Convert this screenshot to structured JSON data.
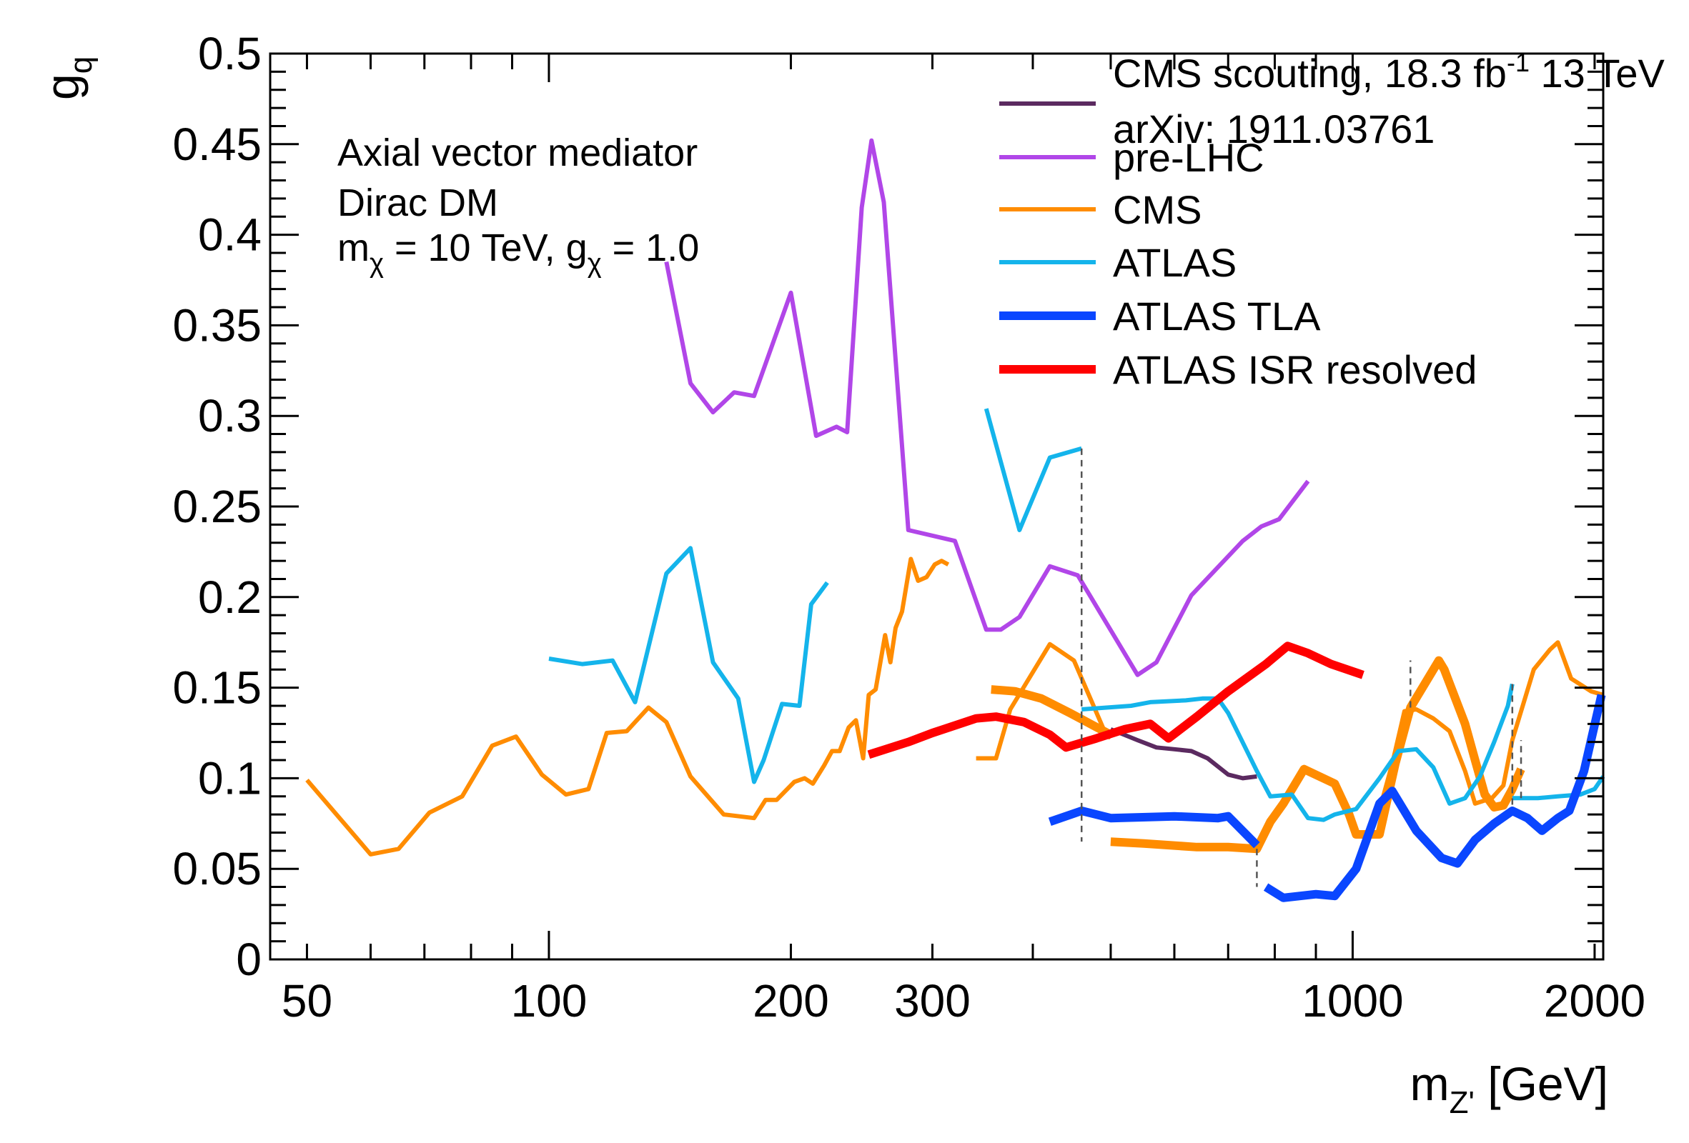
{
  "chart_data": {
    "type": "line",
    "title": "",
    "xlabel": "m",
    "xlabel_sub": "Z'",
    "xlabel_unit": " [GeV]",
    "ylabel": "g",
    "ylabel_sub": "q",
    "x_scale": "log",
    "xlim": [
      45,
      2050
    ],
    "ylim": [
      0,
      0.5
    ],
    "grid": false,
    "legend_position": "top-right",
    "x_ticks": [
      {
        "value": 50,
        "label": "50"
      },
      {
        "value": 100,
        "label": "100"
      },
      {
        "value": 200,
        "label": "200"
      },
      {
        "value": 300,
        "label": "300"
      },
      {
        "value": 1000,
        "label": "1000"
      },
      {
        "value": 2000,
        "label": "2000"
      }
    ],
    "y_ticks": [
      {
        "value": 0,
        "label": "0"
      },
      {
        "value": 0.05,
        "label": "0.05"
      },
      {
        "value": 0.1,
        "label": "0.1"
      },
      {
        "value": 0.15,
        "label": "0.15"
      },
      {
        "value": 0.2,
        "label": "0.2"
      },
      {
        "value": 0.25,
        "label": "0.25"
      },
      {
        "value": 0.3,
        "label": "0.3"
      },
      {
        "value": 0.35,
        "label": "0.35"
      },
      {
        "value": 0.4,
        "label": "0.4"
      },
      {
        "value": 0.45,
        "label": "0.45"
      },
      {
        "value": 0.5,
        "label": "0.5"
      }
    ],
    "annotations": {
      "line1": "Axial vector mediator",
      "line2": "Dirac DM",
      "line3_part1": "m",
      "line3_sub1": "χ",
      "line3_part2": " = 10 TeV, g",
      "line3_sub2": "χ",
      "line3_part3": " = 1.0"
    },
    "legend": [
      {
        "label_line1": "CMS scouting, 18.3 fb",
        "label_sup": "-1",
        "label_tail": " 13 TeV",
        "label_line2": "arXiv: 1911.03761",
        "color": "#5b2a60",
        "width": 6
      },
      {
        "label_line1": "pre-LHC",
        "color": "#b146e8",
        "width": 6
      },
      {
        "label_line1": "CMS",
        "color": "#ff8c00",
        "width": 6
      },
      {
        "label_line1": "ATLAS",
        "color": "#14b4eb",
        "width": 6
      },
      {
        "label_line1": "ATLAS TLA",
        "color": "#0a46ff",
        "width": 12
      },
      {
        "label_line1": "ATLAS ISR resolved",
        "color": "#ff0000",
        "width": 12
      }
    ],
    "series": [
      {
        "key": "pre-LHC",
        "color": "#b146e8",
        "width": 6,
        "segments": [
          [
            [
              140,
              0.385
            ],
            [
              150,
              0.318
            ],
            [
              160,
              0.302
            ],
            [
              170,
              0.313
            ],
            [
              180,
              0.311
            ],
            [
              200,
              0.368
            ],
            [
              215,
              0.289
            ],
            [
              228,
              0.294
            ],
            [
              235,
              0.291
            ],
            [
              245,
              0.415
            ],
            [
              252,
              0.452
            ],
            [
              261,
              0.418
            ],
            [
              280,
              0.237
            ],
            [
              320,
              0.231
            ],
            [
              350,
              0.182
            ],
            [
              365,
              0.182
            ],
            [
              385,
              0.189
            ],
            [
              420,
              0.217
            ],
            [
              455,
              0.212
            ],
            [
              540,
              0.157
            ],
            [
              570,
              0.164
            ],
            [
              630,
              0.201
            ],
            [
              730,
              0.231
            ],
            [
              770,
              0.239
            ],
            [
              810,
              0.243
            ],
            [
              880,
              0.264
            ]
          ]
        ]
      },
      {
        "key": "CMS scouting",
        "color": "#5b2a60",
        "width": 6,
        "segments": [
          [
            [
              500,
              0.127
            ],
            [
              540,
              0.121
            ],
            [
              570,
              0.117
            ],
            [
              600,
              0.116
            ],
            [
              630,
              0.115
            ],
            [
              660,
              0.111
            ],
            [
              700,
              0.102
            ],
            [
              730,
              0.1
            ],
            [
              760,
              0.101
            ]
          ]
        ]
      },
      {
        "key": "CMS",
        "color": "#ff8c00",
        "width": 6,
        "segments": [
          [
            [
              50,
              0.099
            ],
            [
              60,
              0.058
            ],
            [
              65,
              0.061
            ],
            [
              71,
              0.081
            ],
            [
              78,
              0.09
            ],
            [
              85,
              0.118
            ],
            [
              91,
              0.123
            ],
            [
              98,
              0.102
            ],
            [
              105,
              0.091
            ],
            [
              112,
              0.094
            ],
            [
              118,
              0.125
            ],
            [
              125,
              0.126
            ],
            [
              133,
              0.139
            ],
            [
              140,
              0.131
            ],
            [
              150,
              0.101
            ],
            [
              165,
              0.08
            ],
            [
              180,
              0.078
            ],
            [
              186,
              0.088
            ],
            [
              192,
              0.088
            ],
            [
              202,
              0.098
            ],
            [
              208,
              0.1
            ],
            [
              213,
              0.097
            ],
            [
              220,
              0.107
            ],
            [
              225,
              0.115
            ],
            [
              230,
              0.115
            ],
            [
              236,
              0.128
            ],
            [
              241,
              0.132
            ],
            [
              246,
              0.111
            ],
            [
              250,
              0.146
            ],
            [
              255,
              0.149
            ],
            [
              262,
              0.179
            ],
            [
              266,
              0.164
            ],
            [
              270,
              0.183
            ],
            [
              275,
              0.192
            ],
            [
              282,
              0.221
            ],
            [
              288,
              0.209
            ],
            [
              295,
              0.211
            ],
            [
              302,
              0.218
            ],
            [
              308,
              0.22
            ],
            [
              314,
              0.218
            ]
          ],
          [
            [
              340,
              0.111
            ],
            [
              360,
              0.111
            ],
            [
              375,
              0.138
            ],
            [
              420,
              0.174
            ],
            [
              450,
              0.165
            ],
            [
              490,
              0.127
            ],
            [
              500,
              0.122
            ]
          ],
          [
            [
              1090,
              0.089
            ],
            [
              1120,
              0.108
            ],
            [
              1160,
              0.137
            ],
            [
              1200,
              0.138
            ],
            [
              1260,
              0.133
            ],
            [
              1320,
              0.126
            ],
            [
              1380,
              0.104
            ],
            [
              1420,
              0.086
            ],
            [
              1490,
              0.089
            ],
            [
              1540,
              0.096
            ],
            [
              1580,
              0.121
            ],
            [
              1680,
              0.16
            ],
            [
              1760,
              0.171
            ],
            [
              1800,
              0.175
            ],
            [
              1870,
              0.155
            ],
            [
              1980,
              0.148
            ],
            [
              2050,
              0.146
            ]
          ]
        ]
      },
      {
        "key": "CMS-thick",
        "color": "#ff8c00",
        "width": 12,
        "segments": [
          [
            [
              355,
              0.149
            ],
            [
              380,
              0.148
            ],
            [
              410,
              0.144
            ],
            [
              445,
              0.136
            ],
            [
              500,
              0.124
            ]
          ],
          [
            [
              500,
              0.065
            ],
            [
              550,
              0.064
            ],
            [
              640,
              0.062
            ],
            [
              700,
              0.062
            ],
            [
              760,
              0.061
            ],
            [
              790,
              0.076
            ],
            [
              820,
              0.086
            ],
            [
              870,
              0.105
            ],
            [
              950,
              0.097
            ],
            [
              990,
              0.08
            ],
            [
              1010,
              0.069
            ],
            [
              1080,
              0.069
            ],
            [
              1130,
              0.108
            ],
            [
              1180,
              0.139
            ],
            [
              1280,
              0.165
            ],
            [
              1300,
              0.16
            ],
            [
              1380,
              0.13
            ],
            [
              1420,
              0.11
            ],
            [
              1460,
              0.091
            ],
            [
              1500,
              0.084
            ],
            [
              1540,
              0.085
            ],
            [
              1580,
              0.094
            ],
            [
              1620,
              0.105
            ]
          ]
        ]
      },
      {
        "key": "ATLAS",
        "color": "#14b4eb",
        "width": 6,
        "segments": [
          [
            [
              100,
              0.166
            ],
            [
              110,
              0.163
            ],
            [
              120,
              0.165
            ],
            [
              128,
              0.142
            ],
            [
              140,
              0.213
            ],
            [
              150,
              0.227
            ],
            [
              160,
              0.164
            ],
            [
              172,
              0.144
            ],
            [
              180,
              0.098
            ],
            [
              185,
              0.11
            ],
            [
              195,
              0.141
            ],
            [
              205,
              0.14
            ],
            [
              212,
              0.196
            ],
            [
              222,
              0.208
            ]
          ],
          [
            [
              350,
              0.304
            ],
            [
              385,
              0.237
            ],
            [
              420,
              0.277
            ],
            [
              460,
              0.282
            ]
          ],
          [
            [
              460,
              0.138
            ],
            [
              530,
              0.14
            ],
            [
              560,
              0.142
            ],
            [
              620,
              0.143
            ],
            [
              650,
              0.144
            ],
            [
              680,
              0.144
            ],
            [
              700,
              0.136
            ],
            [
              760,
              0.104
            ],
            [
              790,
              0.09
            ],
            [
              840,
              0.091
            ],
            [
              880,
              0.078
            ],
            [
              920,
              0.077
            ],
            [
              950,
              0.08
            ],
            [
              1010,
              0.083
            ],
            [
              1080,
              0.1
            ],
            [
              1140,
              0.115
            ],
            [
              1200,
              0.116
            ],
            [
              1260,
              0.106
            ],
            [
              1320,
              0.086
            ],
            [
              1380,
              0.089
            ],
            [
              1440,
              0.101
            ],
            [
              1500,
              0.12
            ],
            [
              1560,
              0.14
            ],
            [
              1580,
              0.152
            ]
          ],
          [
            [
              1580,
              0.089
            ],
            [
              1700,
              0.089
            ],
            [
              1800,
              0.09
            ],
            [
              1920,
              0.091
            ],
            [
              2000,
              0.094
            ],
            [
              2050,
              0.101
            ]
          ]
        ]
      },
      {
        "key": "ATLAS TLA",
        "color": "#0a46ff",
        "width": 12,
        "segments": [
          [
            [
              420,
              0.076
            ],
            [
              460,
              0.082
            ],
            [
              500,
              0.078
            ],
            [
              600,
              0.079
            ],
            [
              680,
              0.078
            ],
            [
              700,
              0.079
            ],
            [
              760,
              0.063
            ]
          ],
          [
            [
              780,
              0.04
            ],
            [
              820,
              0.034
            ],
            [
              860,
              0.035
            ],
            [
              900,
              0.036
            ],
            [
              950,
              0.035
            ],
            [
              1010,
              0.05
            ],
            [
              1080,
              0.086
            ],
            [
              1120,
              0.093
            ],
            [
              1200,
              0.071
            ],
            [
              1290,
              0.056
            ],
            [
              1350,
              0.053
            ],
            [
              1420,
              0.066
            ],
            [
              1500,
              0.075
            ],
            [
              1580,
              0.082
            ],
            [
              1650,
              0.078
            ],
            [
              1720,
              0.071
            ],
            [
              1800,
              0.078
            ],
            [
              1860,
              0.082
            ],
            [
              1940,
              0.104
            ],
            [
              2040,
              0.146
            ]
          ]
        ]
      },
      {
        "key": "ATLAS ISR resolved",
        "color": "#ff0000",
        "width": 12,
        "segments": [
          [
            [
              250,
              0.113
            ],
            [
              280,
              0.12
            ],
            [
              300,
              0.125
            ],
            [
              340,
              0.133
            ],
            [
              360,
              0.134
            ],
            [
              390,
              0.131
            ],
            [
              420,
              0.124
            ],
            [
              440,
              0.117
            ],
            [
              480,
              0.122
            ],
            [
              520,
              0.127
            ],
            [
              560,
              0.13
            ],
            [
              590,
              0.122
            ],
            [
              640,
              0.134
            ],
            [
              700,
              0.148
            ],
            [
              780,
              0.163
            ],
            [
              830,
              0.173
            ],
            [
              880,
              0.169
            ],
            [
              940,
              0.163
            ],
            [
              1030,
              0.157
            ]
          ]
        ]
      }
    ],
    "dashed_connectors": [
      [
        [
          460,
          0.282
        ],
        [
          460,
          0.065
        ]
      ],
      [
        [
          760,
          0.061
        ],
        [
          760,
          0.04
        ]
      ],
      [
        [
          1180,
          0.139
        ],
        [
          1180,
          0.165
        ]
      ],
      [
        [
          1580,
          0.152
        ],
        [
          1580,
          0.085
        ]
      ],
      [
        [
          1620,
          0.089
        ],
        [
          1620,
          0.121
        ]
      ]
    ]
  }
}
